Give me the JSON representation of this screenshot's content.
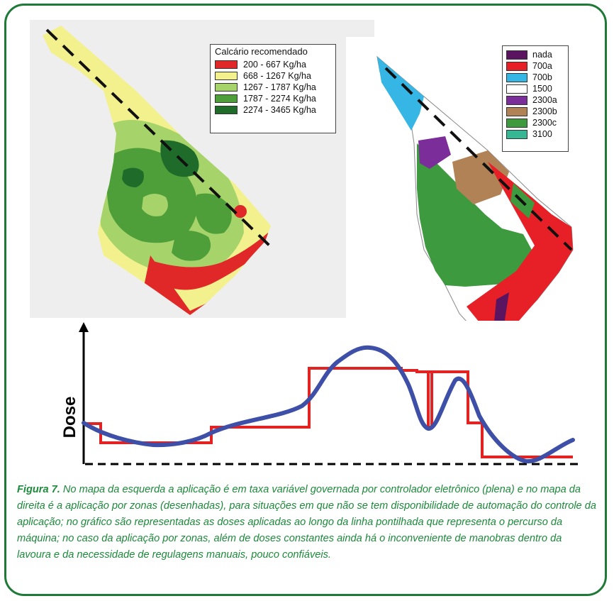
{
  "figure": {
    "caption_label": "Figura 7.",
    "caption_text": " No mapa da esquerda a aplicação é em taxa variável governada por controlador eletrônico (plena) e no mapa da direita é a aplicação por zonas (desenhadas), para situações em que não se tem disponibilidade de automação do controle da aplicação; no gráfico são representadas as doses aplicadas ao longo da linha pontilhada que representa o percurso da máquina; no caso da aplicação por zonas, além de doses constantes ainda há o inconveniente de manobras dentro da lavoura e da necessidade de regulagens manuais, pouco confiáveis."
  },
  "left_map": {
    "legend_title": "Calcário recomendado",
    "legend": [
      {
        "label": "200 - 667 Kg/ha",
        "color": "#e02828"
      },
      {
        "label": "668 - 1267 Kg/ha",
        "color": "#f3f18e"
      },
      {
        "label": "1267 - 1787 Kg/ha",
        "color": "#a6d46a"
      },
      {
        "label": "1787 - 2274 Kg/ha",
        "color": "#4e9e3a"
      },
      {
        "label": "2274 - 3465 Kg/ha",
        "color": "#1f6b2a"
      }
    ]
  },
  "right_map": {
    "legend": [
      {
        "label": "nada",
        "color": "#5a1460"
      },
      {
        "label": "700a",
        "color": "#e62026"
      },
      {
        "label": "700b",
        "color": "#36b6e4"
      },
      {
        "label": "1500",
        "color": "#ffffff"
      },
      {
        "label": "2300a",
        "color": "#7b2d9a"
      },
      {
        "label": "2300b",
        "color": "#b08256"
      },
      {
        "label": "2300c",
        "color": "#3e9a3e"
      },
      {
        "label": "3100",
        "color": "#36b793"
      }
    ]
  },
  "chart": {
    "ylabel": "Dose",
    "colors": {
      "zones": "#e32222",
      "variable": "#3e4fa8",
      "baseline": "#000000"
    }
  }
}
